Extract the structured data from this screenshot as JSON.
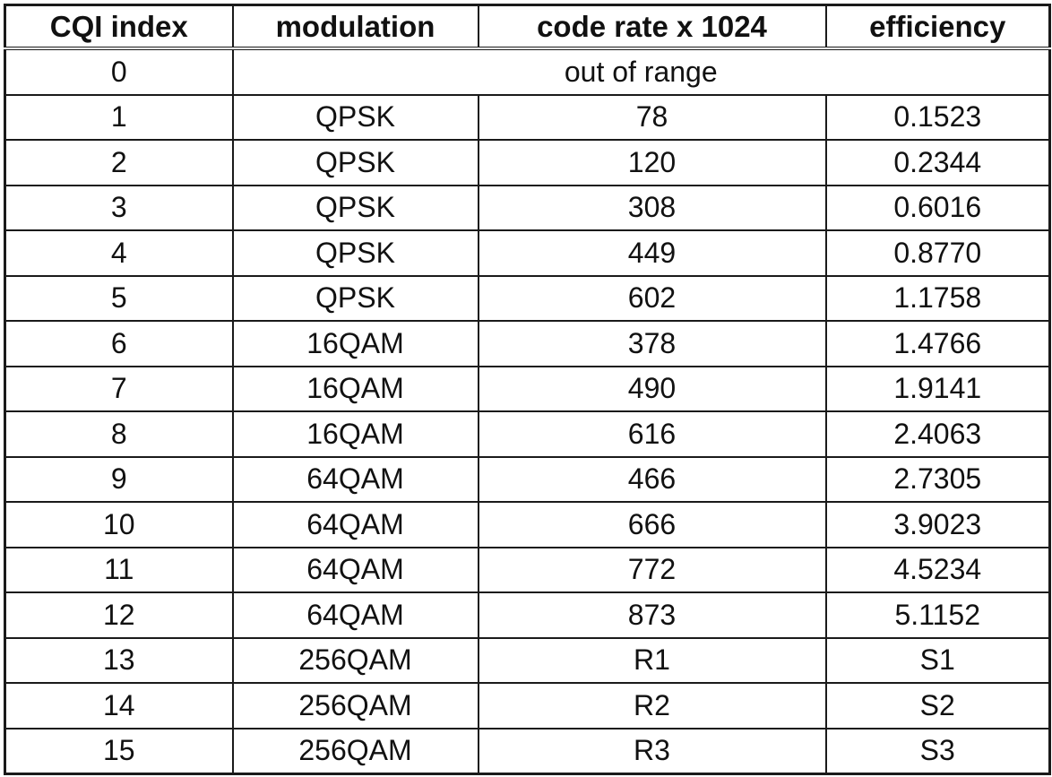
{
  "table": {
    "headers": [
      "CQI index",
      "modulation",
      "code rate x 1024",
      "efficiency"
    ],
    "out_of_range_row": {
      "index": "0",
      "text": "out of range"
    },
    "rows": [
      {
        "index": "1",
        "modulation": "QPSK",
        "code_rate": "78",
        "efficiency": "0.1523"
      },
      {
        "index": "2",
        "modulation": "QPSK",
        "code_rate": "120",
        "efficiency": "0.2344"
      },
      {
        "index": "3",
        "modulation": "QPSK",
        "code_rate": "308",
        "efficiency": "0.6016"
      },
      {
        "index": "4",
        "modulation": "QPSK",
        "code_rate": "449",
        "efficiency": "0.8770"
      },
      {
        "index": "5",
        "modulation": "QPSK",
        "code_rate": "602",
        "efficiency": "1.1758"
      },
      {
        "index": "6",
        "modulation": "16QAM",
        "code_rate": "378",
        "efficiency": "1.4766"
      },
      {
        "index": "7",
        "modulation": "16QAM",
        "code_rate": "490",
        "efficiency": "1.9141"
      },
      {
        "index": "8",
        "modulation": "16QAM",
        "code_rate": "616",
        "efficiency": "2.4063"
      },
      {
        "index": "9",
        "modulation": "64QAM",
        "code_rate": "466",
        "efficiency": "2.7305"
      },
      {
        "index": "10",
        "modulation": "64QAM",
        "code_rate": "666",
        "efficiency": "3.9023"
      },
      {
        "index": "11",
        "modulation": "64QAM",
        "code_rate": "772",
        "efficiency": "4.5234"
      },
      {
        "index": "12",
        "modulation": "64QAM",
        "code_rate": "873",
        "efficiency": "5.1152"
      },
      {
        "index": "13",
        "modulation": "256QAM",
        "code_rate": "R1",
        "efficiency": "S1"
      },
      {
        "index": "14",
        "modulation": "256QAM",
        "code_rate": "R2",
        "efficiency": "S2"
      },
      {
        "index": "15",
        "modulation": "256QAM",
        "code_rate": "R3",
        "efficiency": "S3"
      }
    ]
  }
}
